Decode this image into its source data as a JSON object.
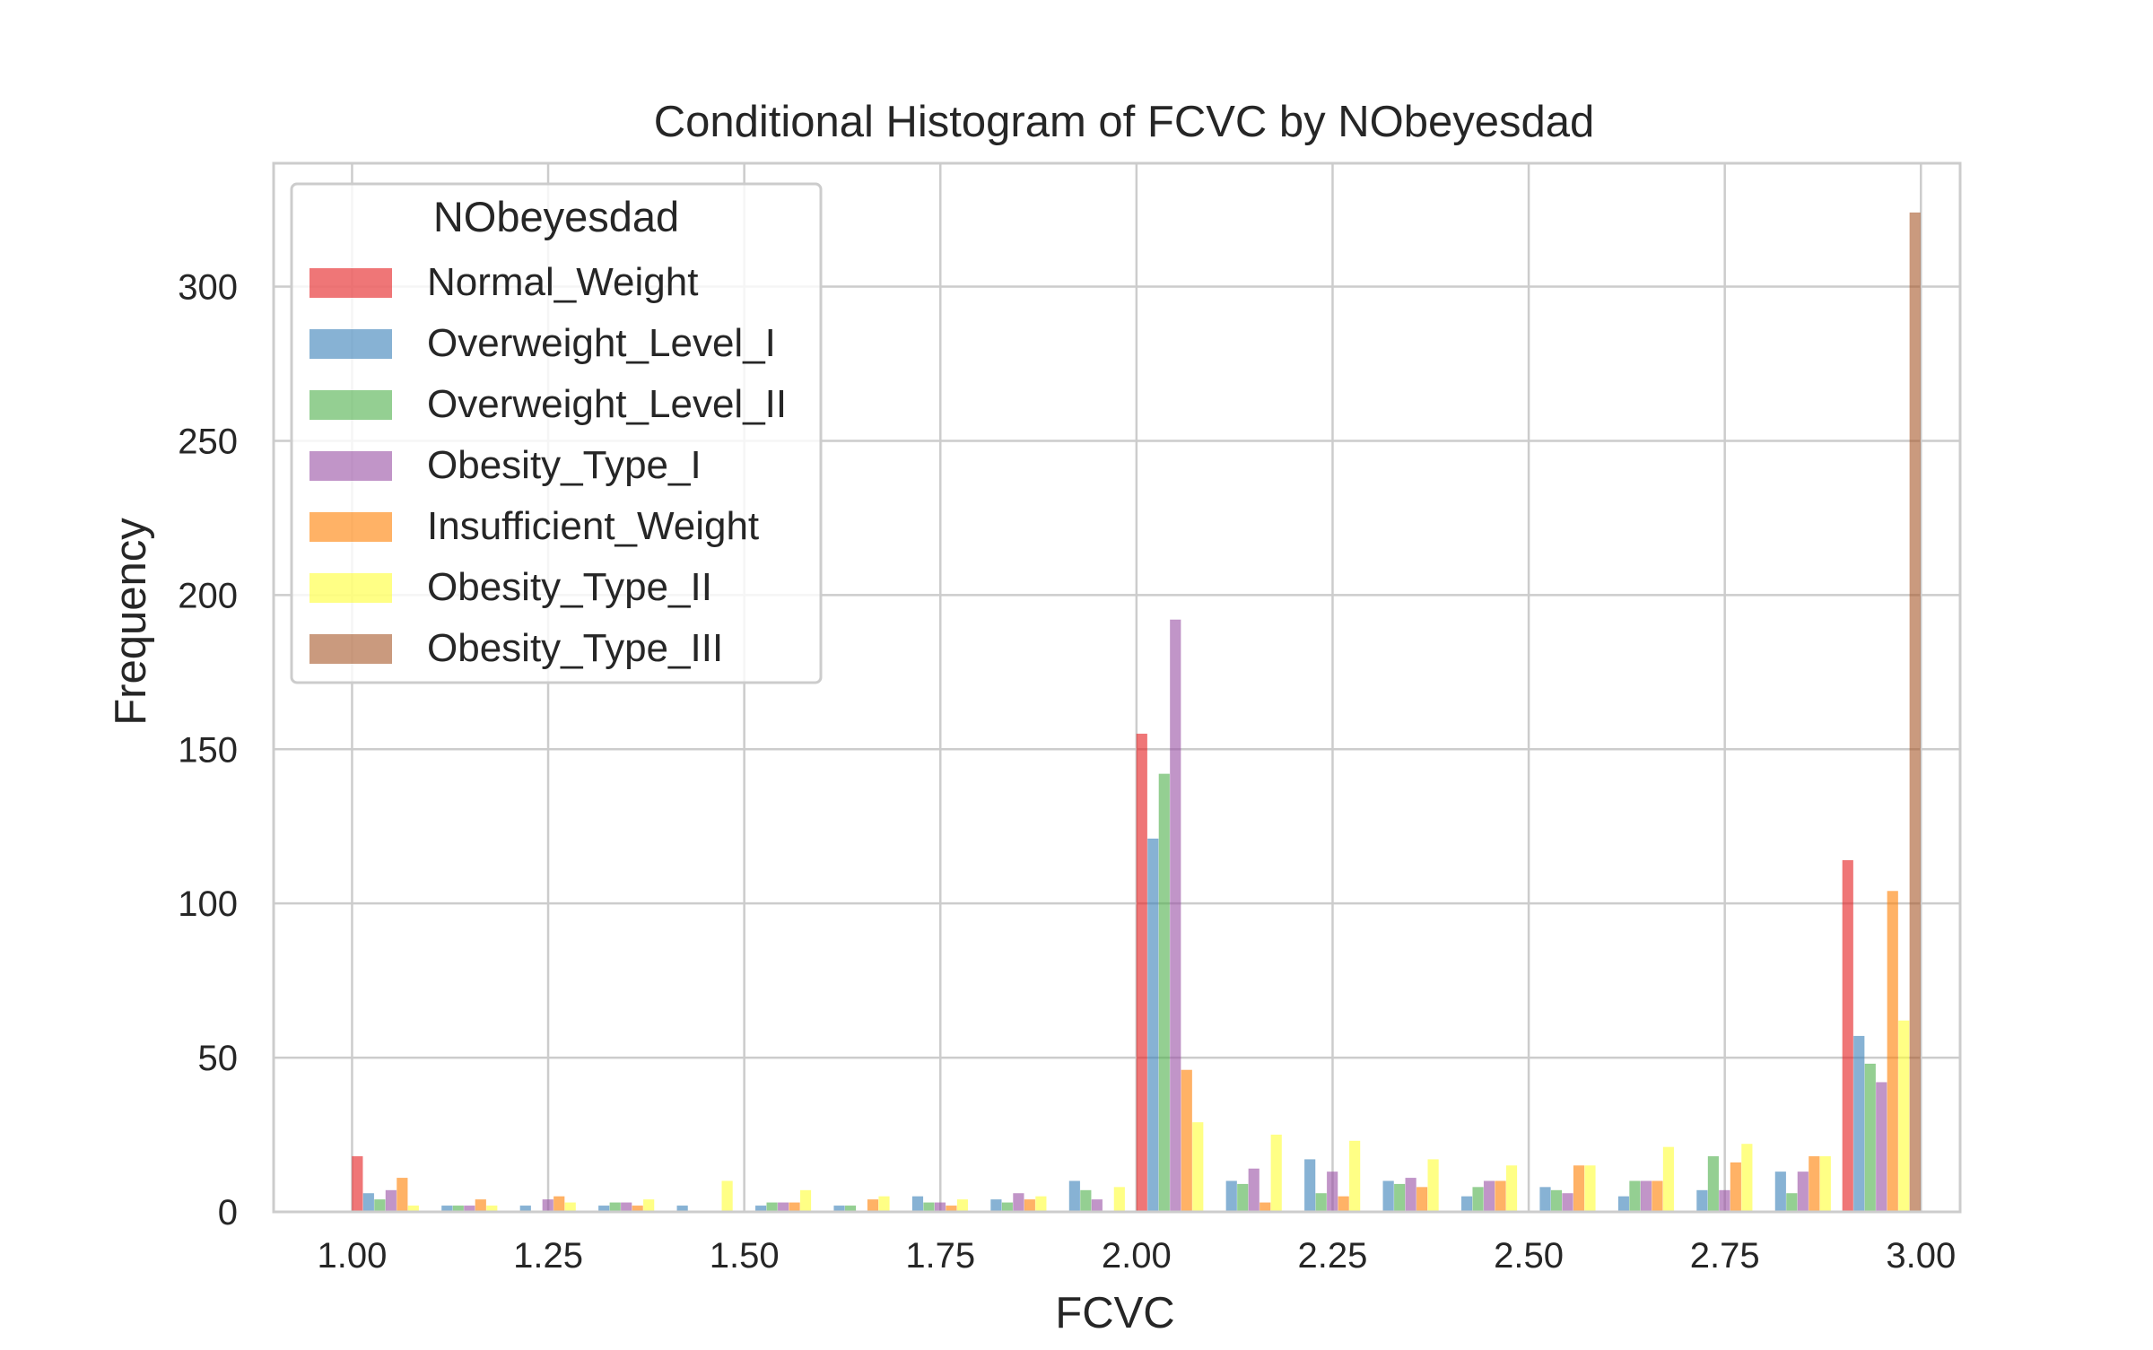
{
  "chart_data": {
    "type": "bar",
    "title": "Conditional Histogram of FCVC by NObeyesdad",
    "xlabel": "FCVC",
    "ylabel": "Frequency",
    "xlim": [
      0.9,
      3.05
    ],
    "ylim": [
      0,
      340
    ],
    "xticks": [
      1.0,
      1.25,
      1.5,
      1.75,
      2.0,
      2.25,
      2.5,
      2.75,
      3.0
    ],
    "xtick_labels": [
      "1.00",
      "1.25",
      "1.50",
      "1.75",
      "2.00",
      "2.25",
      "2.50",
      "2.75",
      "3.00"
    ],
    "yticks": [
      0,
      50,
      100,
      150,
      200,
      250,
      300
    ],
    "ytick_labels": [
      "0",
      "50",
      "100",
      "150",
      "200",
      "250",
      "300"
    ],
    "grid": true,
    "legend": {
      "title": "NObeyesdad",
      "position": "upper-left"
    },
    "bin_edges": [
      1.0,
      1.1,
      1.2,
      1.3,
      1.4,
      1.5,
      1.6,
      1.7,
      1.8,
      1.9,
      2.0,
      2.1,
      2.2,
      2.3,
      2.4,
      2.5,
      2.6,
      2.7,
      2.8,
      2.9,
      3.0
    ],
    "series": [
      {
        "name": "Normal_Weight",
        "color": "#e41a1c",
        "values": [
          18,
          0,
          0,
          0,
          0,
          0,
          0,
          0,
          0,
          0,
          155,
          0,
          0,
          0,
          0,
          0,
          0,
          0,
          0,
          114
        ]
      },
      {
        "name": "Overweight_Level_I",
        "color": "#377eb8",
        "values": [
          6,
          2,
          2,
          2,
          2,
          2,
          2,
          5,
          4,
          10,
          121,
          10,
          17,
          10,
          5,
          8,
          5,
          7,
          13,
          57
        ]
      },
      {
        "name": "Overweight_Level_II",
        "color": "#4daf4a",
        "values": [
          4,
          2,
          0,
          3,
          0,
          3,
          2,
          3,
          3,
          7,
          142,
          9,
          6,
          9,
          8,
          7,
          10,
          18,
          6,
          48
        ]
      },
      {
        "name": "Obesity_Type_I",
        "color": "#984ea3",
        "values": [
          7,
          2,
          4,
          3,
          0,
          3,
          0,
          3,
          6,
          4,
          192,
          14,
          13,
          11,
          10,
          6,
          10,
          7,
          13,
          42
        ]
      },
      {
        "name": "Insufficient_Weight",
        "color": "#ff7f00",
        "values": [
          11,
          4,
          5,
          2,
          0,
          3,
          4,
          2,
          4,
          0,
          46,
          3,
          5,
          8,
          10,
          15,
          10,
          16,
          18,
          104
        ]
      },
      {
        "name": "Obesity_Type_II",
        "color": "#ffff33",
        "values": [
          2,
          2,
          3,
          4,
          10,
          7,
          5,
          4,
          5,
          8,
          29,
          25,
          23,
          17,
          15,
          15,
          21,
          22,
          18,
          62
        ]
      },
      {
        "name": "Obesity_Type_III",
        "color": "#a65628",
        "values": [
          0,
          0,
          0,
          0,
          0,
          0,
          0,
          0,
          0,
          0,
          0,
          0,
          0,
          0,
          0,
          0,
          0,
          0,
          0,
          324
        ]
      }
    ]
  }
}
